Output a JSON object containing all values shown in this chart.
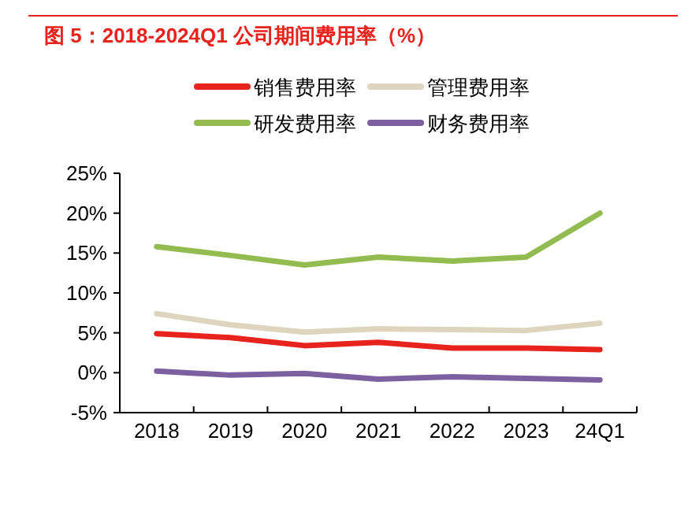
{
  "chart_data": {
    "type": "line",
    "title": "图 5：2018-2024Q1 公司期间费用率（%）",
    "categories": [
      "2018",
      "2019",
      "2020",
      "2021",
      "2022",
      "2023",
      "24Q1"
    ],
    "series": [
      {
        "name": "销售费用率",
        "color": "#e8221c",
        "values": [
          4.9,
          4.4,
          3.4,
          3.8,
          3.1,
          3.1,
          2.9
        ]
      },
      {
        "name": "管理费用率",
        "color": "#ddd5bd",
        "values": [
          7.4,
          6.0,
          5.1,
          5.5,
          5.4,
          5.3,
          6.2
        ]
      },
      {
        "name": "研发费用率",
        "color": "#92bb50",
        "values": [
          15.8,
          14.7,
          13.5,
          14.5,
          14.0,
          14.5,
          20.0
        ]
      },
      {
        "name": "财务费用率",
        "color": "#7d60a0",
        "values": [
          0.2,
          -0.3,
          -0.1,
          -0.8,
          -0.5,
          -0.7,
          -0.9
        ]
      }
    ],
    "ylim": [
      -5,
      25
    ],
    "yticks": [
      {
        "value": -5,
        "label": "-5%"
      },
      {
        "value": 0,
        "label": "0%"
      },
      {
        "value": 5,
        "label": "5%"
      },
      {
        "value": 10,
        "label": "10%"
      },
      {
        "value": 15,
        "label": "15%"
      },
      {
        "value": 20,
        "label": "20%"
      },
      {
        "value": 25,
        "label": "25%"
      }
    ],
    "grid": false,
    "legend": "top",
    "marker": "none",
    "line_style": "solid"
  }
}
